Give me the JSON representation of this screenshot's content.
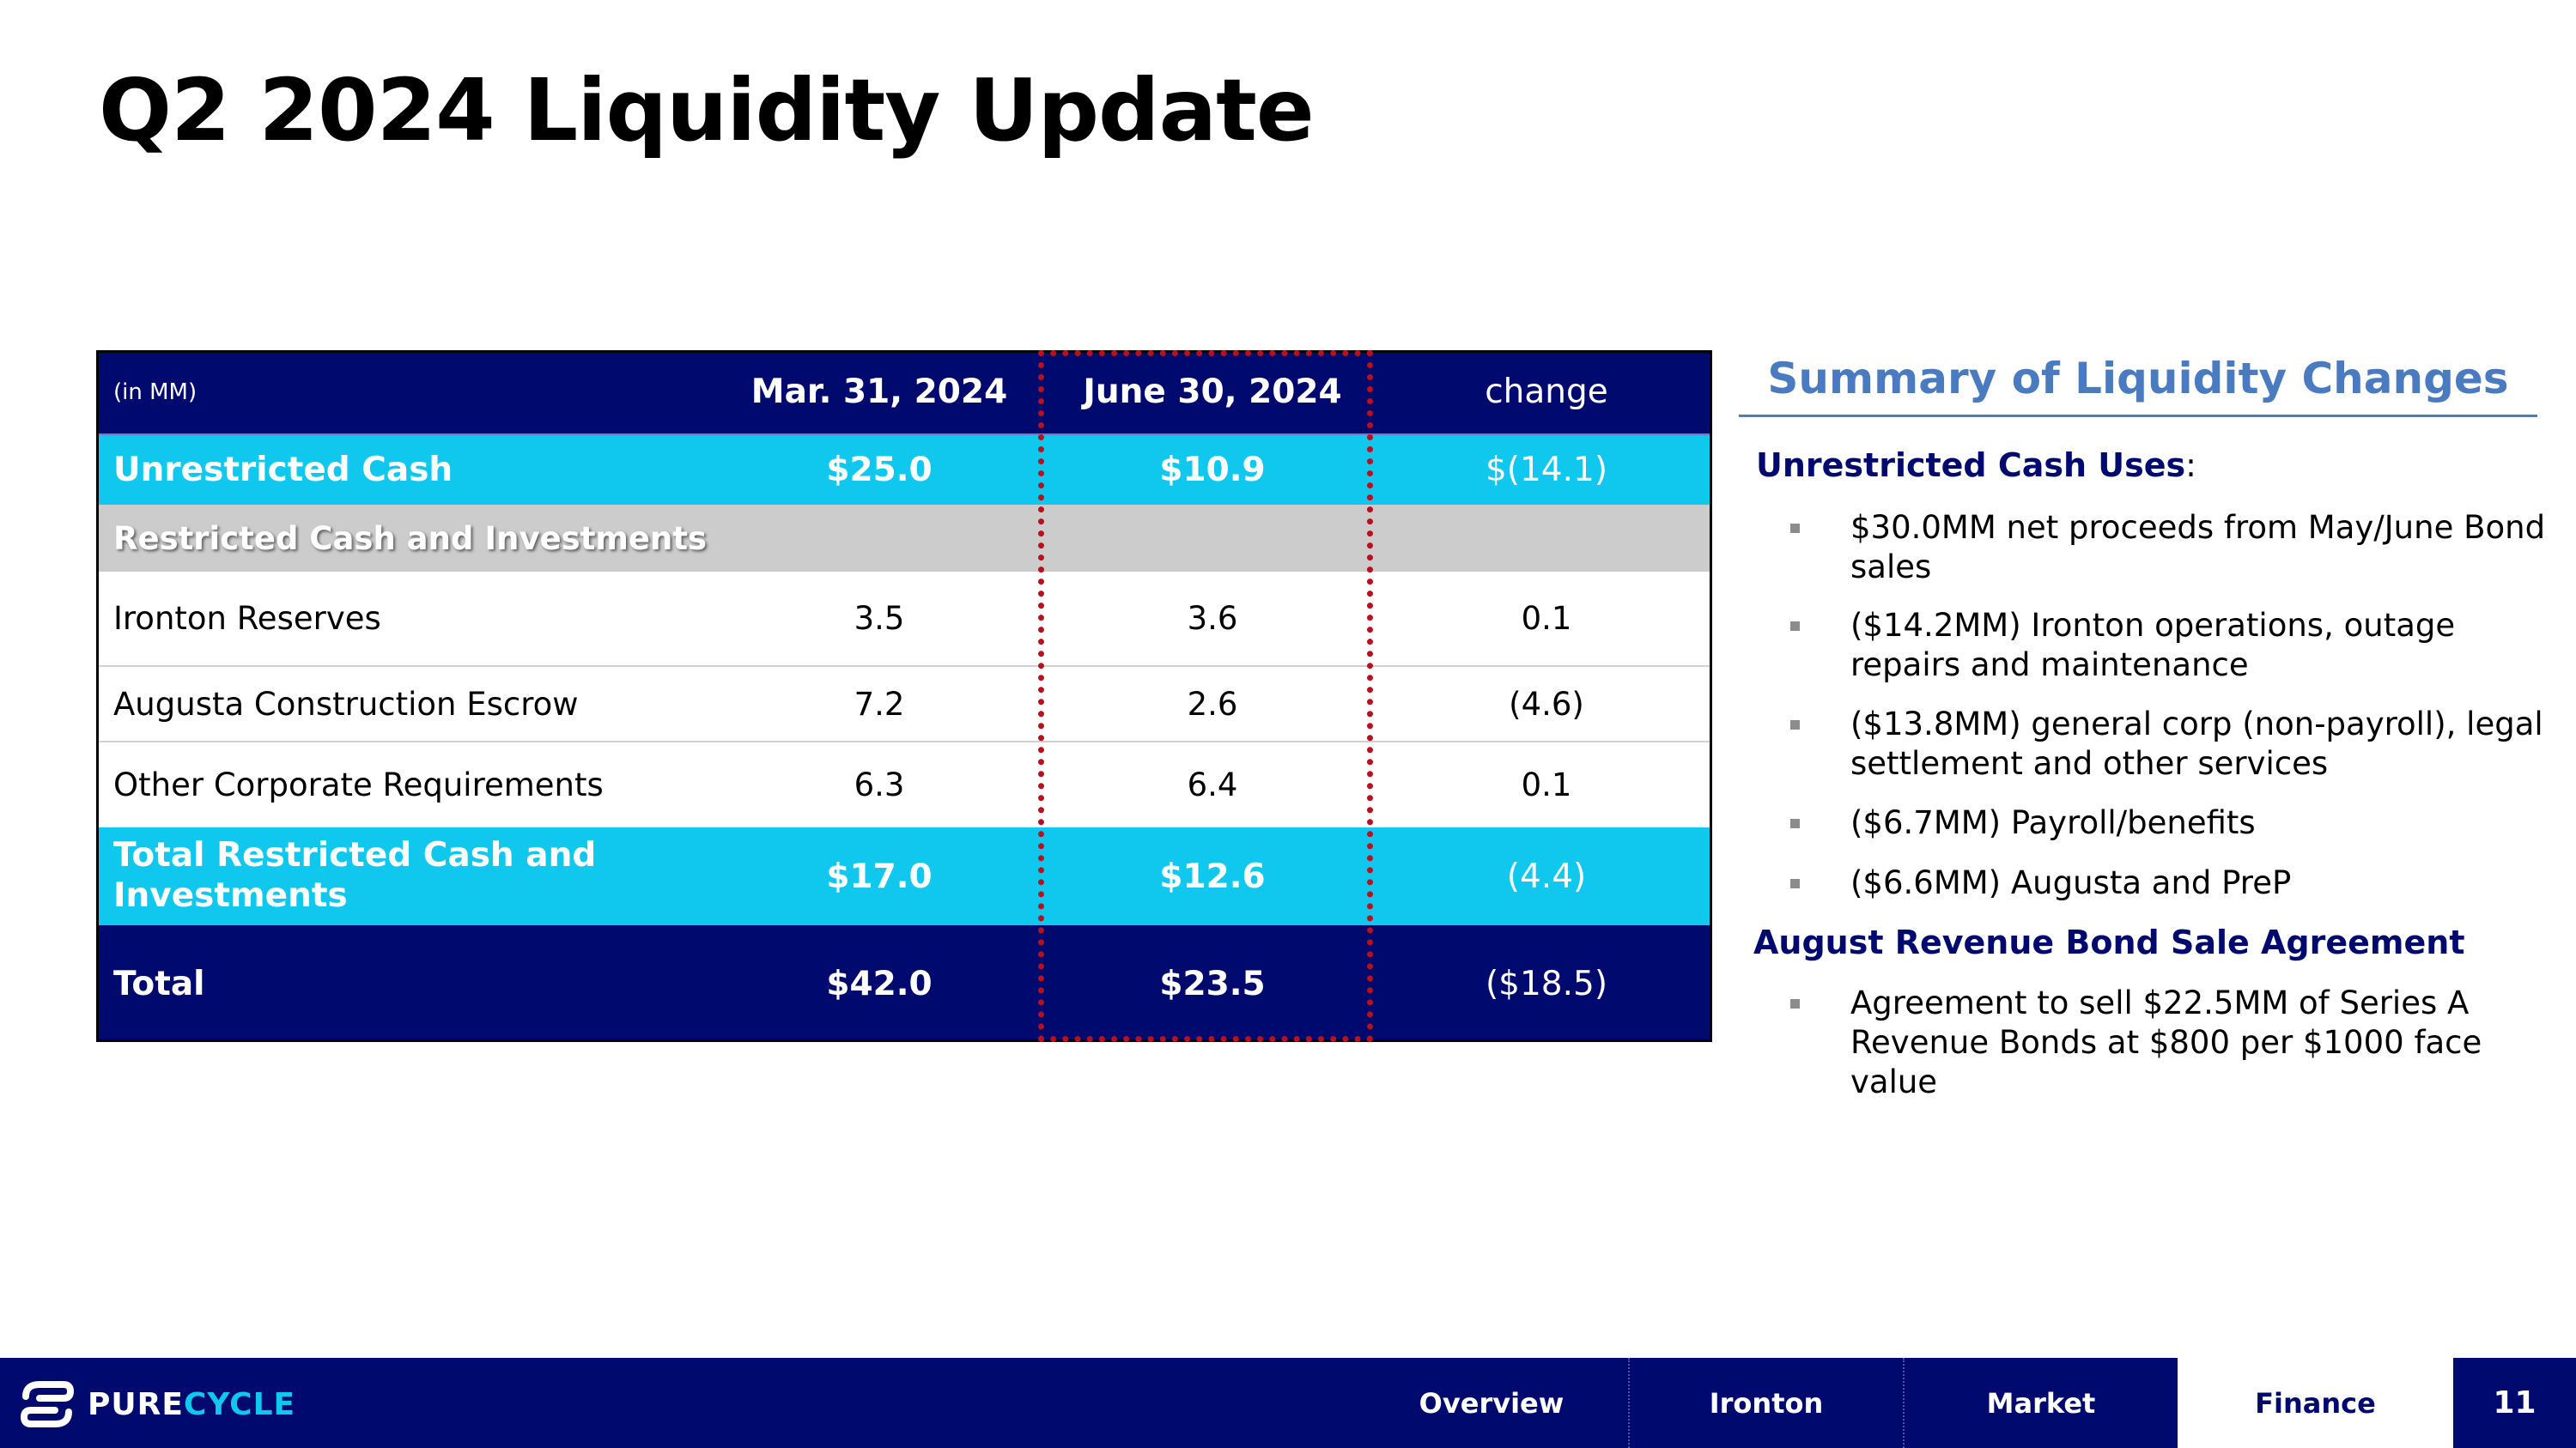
{
  "slide": {
    "title": "Q2 2024 Liquidity Update",
    "page_number": "11"
  },
  "table": {
    "header": {
      "units": "(in MM)",
      "col1": "Mar. 31, 2024",
      "col2": "June 30, 2024",
      "col3": "change"
    },
    "unrestricted_cash": {
      "label": "Unrestricted Cash",
      "mar": "$25.0",
      "jun": "$10.9",
      "change": "$(14.1)"
    },
    "restricted_section": {
      "label": "Restricted Cash and Investments"
    },
    "rows": [
      {
        "label": "Ironton Reserves",
        "mar": "3.5",
        "jun": "3.6",
        "change": "0.1"
      },
      {
        "label": "Augusta Construction Escrow",
        "mar": "7.2",
        "jun": "2.6",
        "change": "(4.6)"
      },
      {
        "label": "Other Corporate Requirements",
        "mar": "6.3",
        "jun": "6.4",
        "change": "0.1"
      }
    ],
    "total_restricted": {
      "label": "Total Restricted Cash and Investments",
      "mar": "$17.0",
      "jun": "$12.6",
      "change": "(4.4)"
    },
    "total": {
      "label": "Total",
      "mar": "$42.0",
      "jun": "$23.5",
      "change": "($18.5)"
    }
  },
  "summary": {
    "title": "Summary of Liquidity Changes",
    "uses_heading": "Unrestricted Cash Uses",
    "uses_colon": ":",
    "uses_items": [
      "$30.0MM net proceeds from May/June Bond sales",
      "($14.2MM) Ironton operations, outage repairs and maintenance",
      "($13.8MM) general corp (non-payroll), legal settlement and other services",
      "($6.7MM) Payroll/benefits",
      "($6.6MM) Augusta and PreP"
    ],
    "bond_heading": "August Revenue Bond Sale Agreement",
    "bond_items": [
      "Agreement to sell $22.5MM of Series A Revenue Bonds at $800 per $1000 face value"
    ]
  },
  "footer": {
    "logo_pure": "PURE",
    "logo_cycle": "CYCLE",
    "nav": [
      "Overview",
      "Ironton",
      "Market",
      "Finance"
    ],
    "active_tab": "Finance"
  },
  "colors": {
    "navy": "#000a6e",
    "cyan": "#10c7ee",
    "grey": "#cccccc",
    "summary_blue": "#4a7ac0",
    "highlight_red": "#b8101c"
  }
}
